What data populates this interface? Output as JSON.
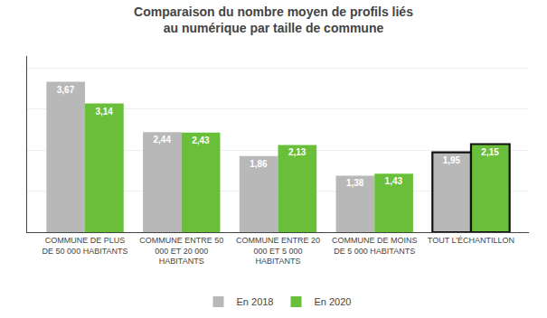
{
  "chart_data": {
    "type": "bar",
    "title": "Comparaison du nombre moyen de profils liés\nau numérique par taille de commune",
    "categories": [
      "COMMUNE DE PLUS\nDE 50 000 HABITANTS",
      "COMMUNE ENTRE 50\n000 ET 20 000\nHABITANTS",
      "COMMUNE ENTRE 20\n000 ET 5 000\nHABITANTS",
      "COMMUNE DE MOINS\nDE 5 000 HABITANTS",
      "TOUT L’ÉCHANTILLON"
    ],
    "series": [
      {
        "name": "En 2018",
        "color": "#b8b8b8",
        "values": [
          3.67,
          2.44,
          1.86,
          1.38,
          1.95
        ],
        "value_labels": [
          "3,67",
          "2,44",
          "1,86",
          "1,38",
          "1,95"
        ]
      },
      {
        "name": "En 2020",
        "color": "#6abf3a",
        "values": [
          3.14,
          2.43,
          2.13,
          1.43,
          2.15
        ],
        "value_labels": [
          "3,14",
          "2,43",
          "2,13",
          "1,43",
          "2,15"
        ]
      }
    ],
    "ylim": [
      0,
      4.3
    ],
    "yticks": [
      0,
      1,
      2,
      3,
      4
    ],
    "grid": true,
    "legend": "bottom",
    "data_labels": true,
    "tick_labels": "x"
  }
}
